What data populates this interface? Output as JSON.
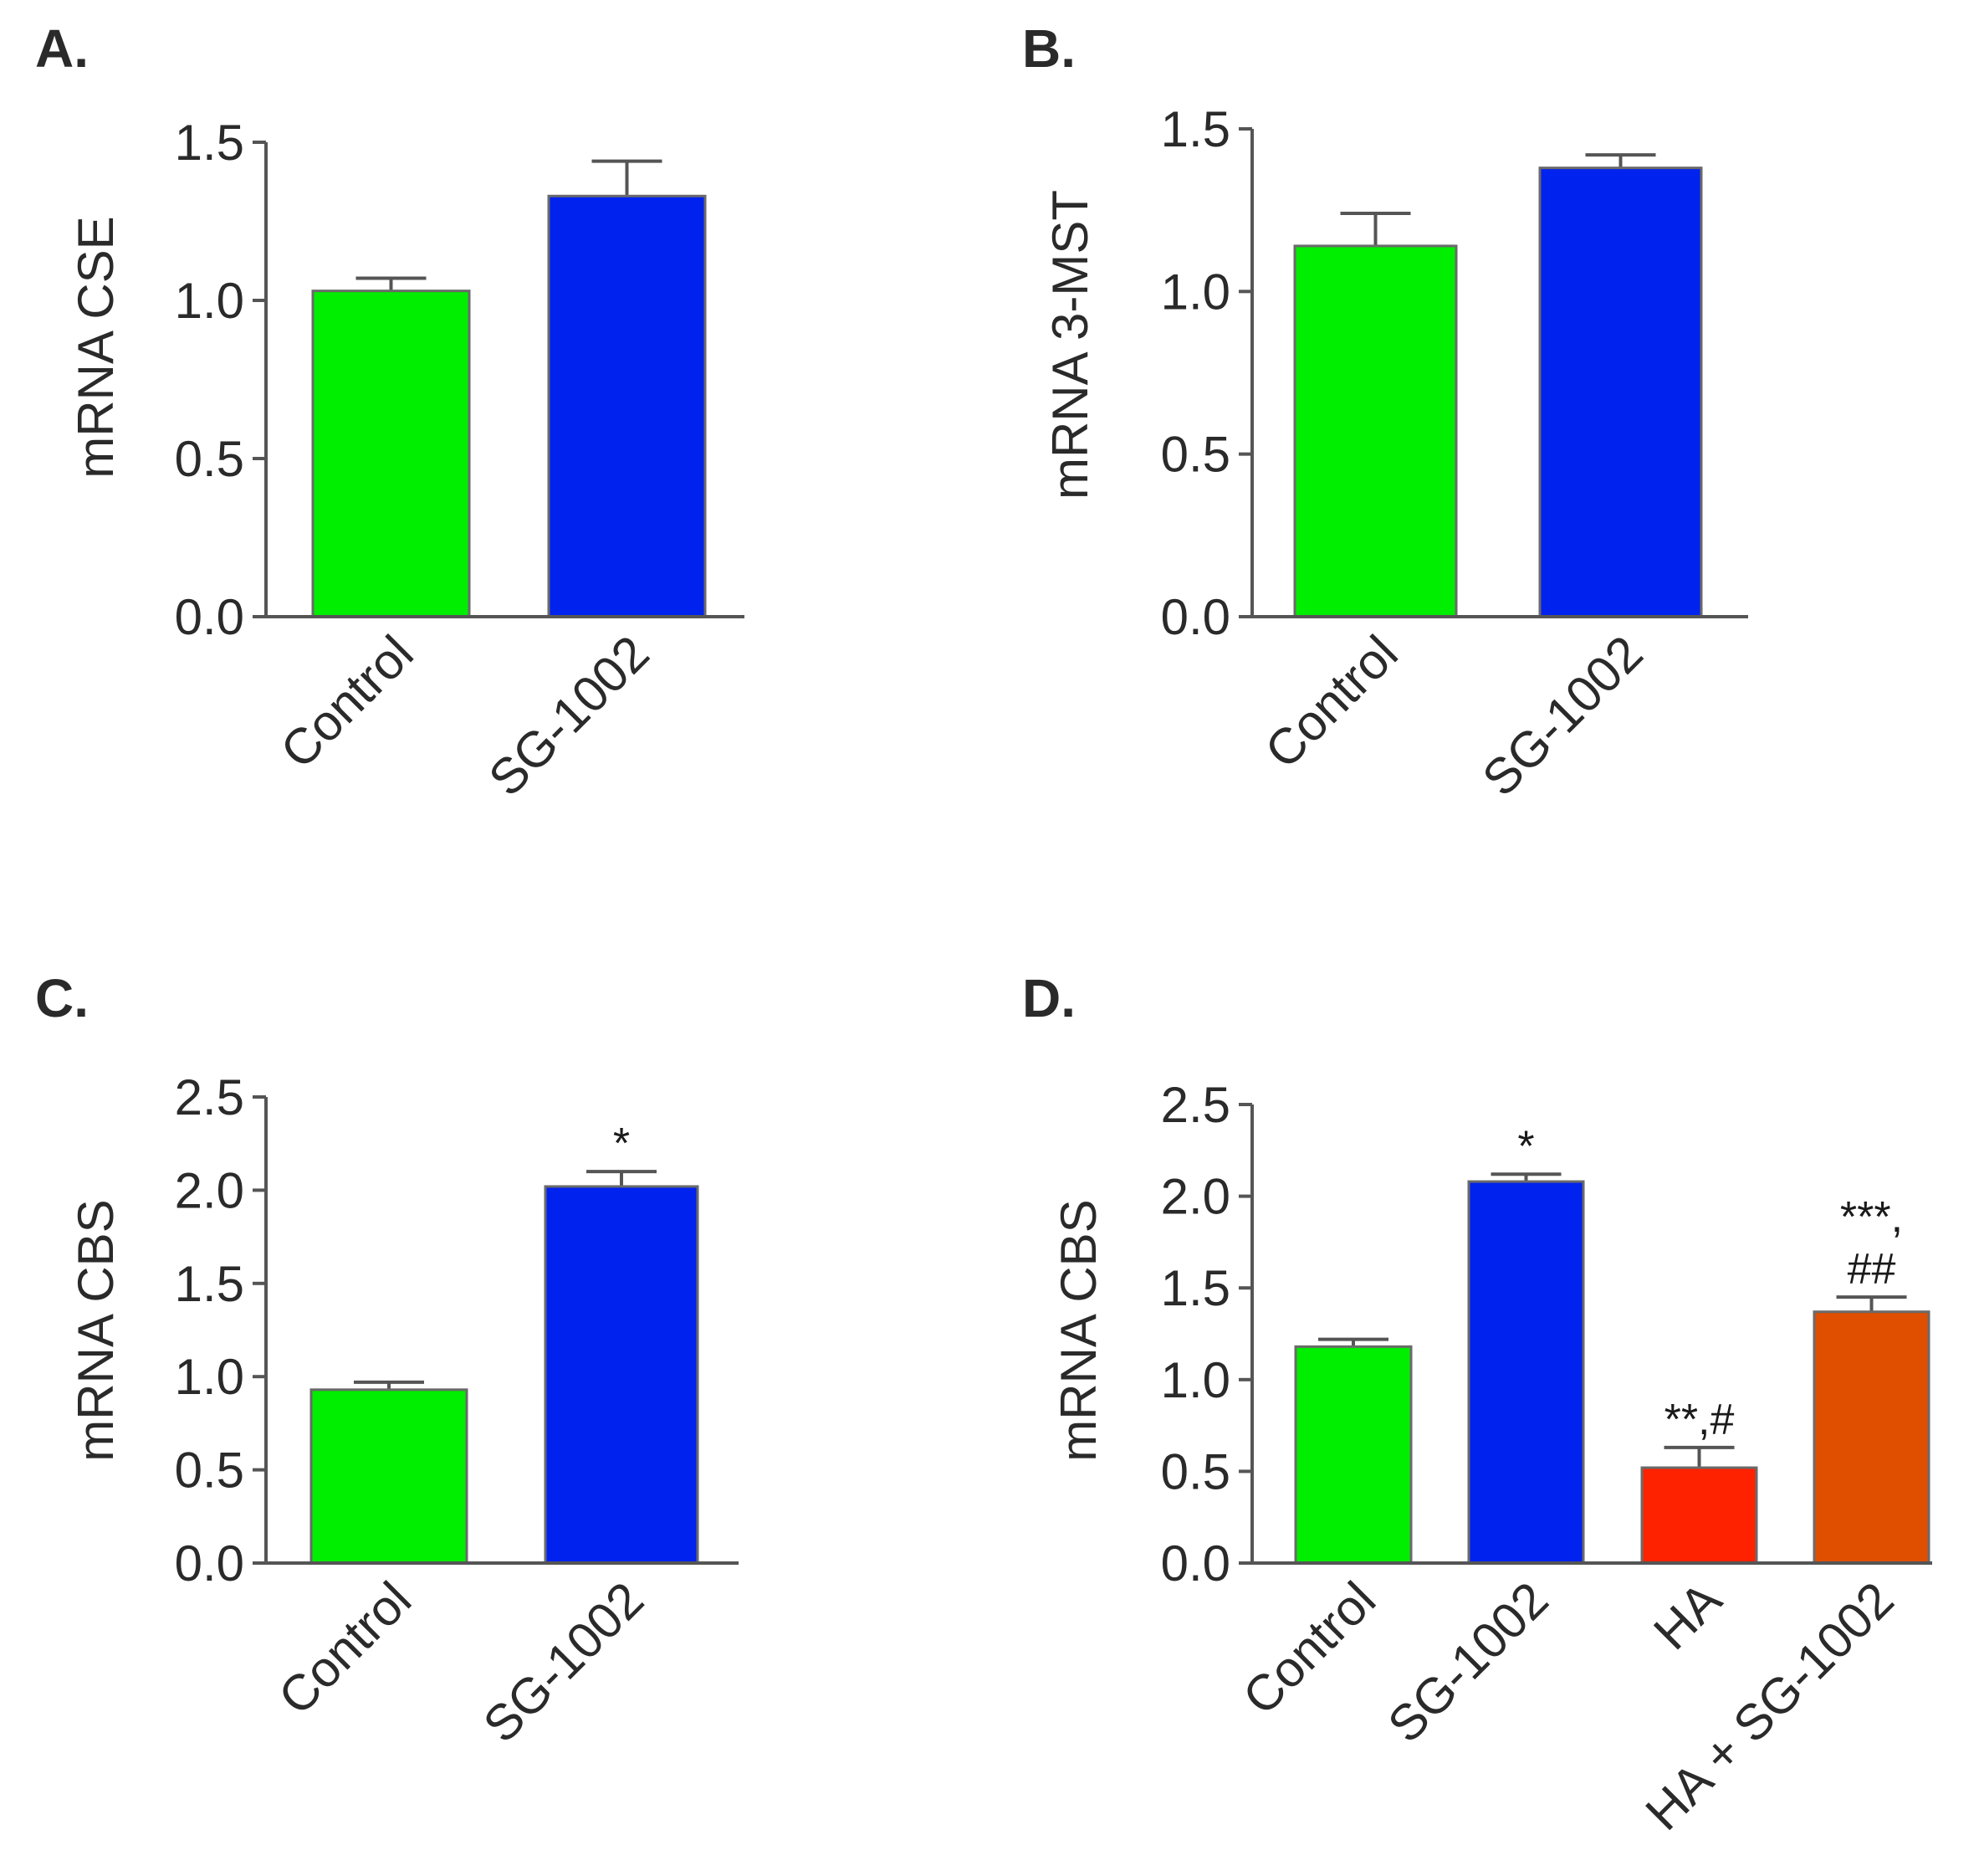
{
  "chart_data": [
    {
      "type": "bar",
      "panel": "A.",
      "categories": [
        "Control",
        "SG-1002"
      ],
      "values": [
        1.03,
        1.33
      ],
      "errors": [
        0.04,
        0.11
      ],
      "colors": [
        "#00ee00",
        "#0022ee"
      ],
      "annotations": [
        [],
        []
      ],
      "ylabel": "mRNA CSE",
      "ylim": [
        0,
        1.5
      ],
      "yticks": [
        "0.0",
        "0.5",
        "1.0",
        "1.5"
      ]
    },
    {
      "type": "bar",
      "panel": "B.",
      "categories": [
        "Control",
        "SG-1002"
      ],
      "values": [
        1.14,
        1.38
      ],
      "errors": [
        0.1,
        0.04
      ],
      "colors": [
        "#00ee00",
        "#0022ee"
      ],
      "annotations": [
        [],
        []
      ],
      "ylabel": "mRNA 3-MST",
      "ylim": [
        0,
        1.5
      ],
      "yticks": [
        "0.0",
        "0.5",
        "1.0",
        "1.5"
      ]
    },
    {
      "type": "bar",
      "panel": "C.",
      "categories": [
        "Control",
        "SG-1002"
      ],
      "values": [
        0.93,
        2.02
      ],
      "errors": [
        0.04,
        0.08
      ],
      "colors": [
        "#00ee00",
        "#0022ee"
      ],
      "annotations": [
        [],
        [
          "*"
        ]
      ],
      "ylabel": "mRNA CBS",
      "ylim": [
        0,
        2.5
      ],
      "yticks": [
        "0.0",
        "0.5",
        "1.0",
        "1.5",
        "2.0",
        "2.5"
      ]
    },
    {
      "type": "bar",
      "panel": "D.",
      "categories": [
        "Control",
        "SG-1002",
        "HA",
        "HA + SG-1002"
      ],
      "values": [
        1.18,
        2.08,
        0.52,
        1.37
      ],
      "errors": [
        0.04,
        0.04,
        0.11,
        0.08
      ],
      "colors": [
        "#00ee00",
        "#0022ee",
        "#ff2200",
        "#e04e00"
      ],
      "annotations": [
        [],
        [
          "*"
        ],
        [
          "**,#"
        ],
        [
          "***,",
          "##"
        ]
      ],
      "ylabel": "mRNA CBS",
      "ylim": [
        0,
        2.5
      ],
      "yticks": [
        "0.0",
        "0.5",
        "1.0",
        "1.5",
        "2.0",
        "2.5"
      ]
    }
  ]
}
